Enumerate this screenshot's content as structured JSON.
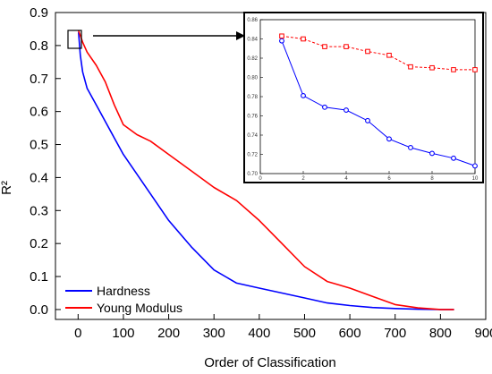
{
  "chart_data": [
    {
      "type": "line",
      "xlabel": "Order of Classification",
      "ylabel": "R²",
      "xlim": [
        -50,
        900
      ],
      "ylim": [
        -0.03,
        0.9
      ],
      "xticks": [
        0,
        100,
        200,
        300,
        400,
        500,
        600,
        700,
        800,
        900
      ],
      "yticks": [
        0.0,
        0.1,
        0.2,
        0.3,
        0.4,
        0.5,
        0.6,
        0.7,
        0.8,
        0.9
      ],
      "grid": false,
      "legend_position": "bottom-left",
      "series": [
        {
          "name": "Hardness",
          "color": "#0000ff",
          "x": [
            1,
            5,
            10,
            20,
            40,
            60,
            80,
            100,
            130,
            160,
            200,
            250,
            300,
            350,
            400,
            450,
            500,
            550,
            600,
            650,
            700,
            750,
            800,
            830
          ],
          "y": [
            0.84,
            0.77,
            0.72,
            0.67,
            0.62,
            0.57,
            0.52,
            0.47,
            0.41,
            0.35,
            0.27,
            0.19,
            0.12,
            0.08,
            0.065,
            0.05,
            0.035,
            0.02,
            0.012,
            0.006,
            0.003,
            0.001,
            0.0,
            0.0
          ]
        },
        {
          "name": "Young Modulus",
          "color": "#ff0000",
          "x": [
            1,
            5,
            10,
            20,
            40,
            60,
            80,
            100,
            130,
            160,
            200,
            250,
            300,
            350,
            400,
            450,
            500,
            550,
            600,
            650,
            700,
            750,
            800,
            830
          ],
          "y": [
            0.845,
            0.83,
            0.81,
            0.78,
            0.74,
            0.69,
            0.62,
            0.56,
            0.53,
            0.51,
            0.47,
            0.42,
            0.37,
            0.33,
            0.27,
            0.2,
            0.13,
            0.085,
            0.065,
            0.04,
            0.015,
            0.005,
            0.0,
            0.0
          ]
        }
      ]
    },
    {
      "type": "line",
      "xlim": [
        0,
        10
      ],
      "ylim": [
        0.7,
        0.86
      ],
      "xticks": [
        0,
        2,
        4,
        6,
        8,
        10
      ],
      "yticks": [
        0.7,
        0.72,
        0.74,
        0.76,
        0.78,
        0.8,
        0.82,
        0.84,
        0.86
      ],
      "series": [
        {
          "name": "Hardness",
          "color": "#0000ff",
          "marker": "circle",
          "x": [
            1,
            2,
            3,
            4,
            5,
            6,
            7,
            8,
            9,
            10
          ],
          "y": [
            0.838,
            0.781,
            0.769,
            0.766,
            0.755,
            0.736,
            0.727,
            0.721,
            0.716,
            0.708
          ]
        },
        {
          "name": "Young Modulus",
          "color": "#ff0000",
          "marker": "square",
          "x": [
            1,
            2,
            3,
            4,
            5,
            6,
            7,
            8,
            9,
            10
          ],
          "y": [
            0.843,
            0.84,
            0.832,
            0.832,
            0.827,
            0.823,
            0.811,
            0.81,
            0.808,
            0.808
          ]
        }
      ]
    }
  ]
}
